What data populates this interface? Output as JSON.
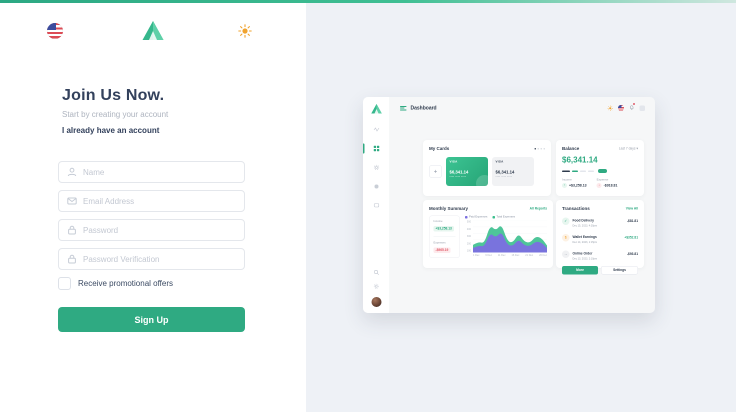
{
  "colors": {
    "accent": "#2faa82",
    "purple": "#7b6fe0",
    "navy": "#33415c",
    "danger": "#e05c6a",
    "warning": "#f0a32e",
    "page_bg": "#eef1f6"
  },
  "topbar": {
    "icons": [
      "us-flag-icon",
      "logo-triangle-icon",
      "sun-icon"
    ]
  },
  "signup": {
    "title": "Join Us Now.",
    "subtitle": "Start by creating your account",
    "login_link": "I already have an account",
    "fields": [
      {
        "placeholder": "Name",
        "icon": "person-icon"
      },
      {
        "placeholder": "Email Address",
        "icon": "envelope-icon"
      },
      {
        "placeholder": "Password",
        "icon": "lock-icon"
      },
      {
        "placeholder": "Password Verification",
        "icon": "lock-icon"
      }
    ],
    "promo_label": "Receive promotional offers",
    "submit_label": "Sign Up"
  },
  "preview": {
    "topbar": {
      "title": "Dashboard"
    },
    "my_cards": {
      "title": "My Cards",
      "add_label": "+",
      "cards": [
        {
          "brand": "VISA",
          "amount": "$6,341.14",
          "masked": "**** **** ****",
          "style": "green"
        },
        {
          "brand": "VISA",
          "amount": "$6,341.14",
          "masked": "**** **** ****",
          "style": "light"
        }
      ]
    },
    "balance": {
      "title": "Balance",
      "range": "Last 7 days",
      "caret": "▾",
      "amount": "$6,341.14",
      "income_label": "Income",
      "income_value": "+$3,258.13",
      "income_arrow": "↑",
      "expense_label": "Expense",
      "expense_value": "-$918.81",
      "expense_arrow": "↓"
    },
    "monthly": {
      "title": "Monthly Summary",
      "link": "All Reports",
      "income_label": "Income",
      "income_value": "+$3,258.13",
      "expenses_label": "Expenses",
      "expenses_value": "-$965.19"
    },
    "transactions": {
      "title": "Transactions",
      "link": "View All",
      "items": [
        {
          "icon_glyph": "✓",
          "name": "Food Delivery",
          "date": "Dec 15, 2023, 4:30pm",
          "amount": "-$81.81"
        },
        {
          "icon_glyph": "$",
          "name": "Wallet Earnings",
          "date": "Dec 14, 2023, 1:15pm",
          "amount": "+$352.81"
        },
        {
          "icon_glyph": "→",
          "name": "Online Order",
          "date": "Dec 13, 2023, 2:10pm",
          "amount": "-$93.81"
        }
      ],
      "more_label": "More",
      "settings_label": "Settings"
    }
  },
  "chart_data": {
    "type": "area",
    "title": "Monthly Summary",
    "xlabel": "",
    "ylabel": "",
    "categories": [
      "1 Dec",
      "6 Dec",
      "11 Dec",
      "16 Dec",
      "21 Dec",
      "26 Dec"
    ],
    "yticks": [
      500,
      400,
      300,
      200,
      100
    ],
    "ylim": [
      0,
      500
    ],
    "grid": true,
    "legend_position": "top-left",
    "series": [
      {
        "name": "Total Expenses",
        "color": "#3bbf8e",
        "values": [
          120,
          170,
          140,
          430,
          340,
          450,
          180,
          150,
          300,
          170,
          150,
          250,
          230,
          110
        ]
      },
      {
        "name": "Paid Expenses",
        "color": "#7b6fe0",
        "values": [
          70,
          110,
          90,
          310,
          230,
          330,
          120,
          100,
          210,
          110,
          100,
          170,
          160,
          70
        ]
      }
    ]
  }
}
